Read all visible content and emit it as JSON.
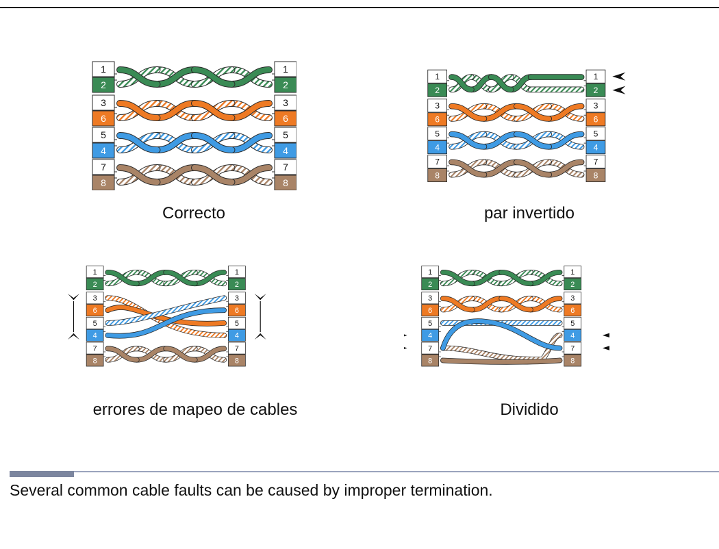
{
  "colors": {
    "green": "#3a8b55",
    "orange": "#ee7a24",
    "blue": "#3f9be4",
    "brown": "#a98467",
    "outline": "#2a2a2a",
    "footer_rule": "#9aa3bd"
  },
  "pin_labels": [
    "1",
    "2",
    "3",
    "6",
    "5",
    "4",
    "7",
    "8"
  ],
  "diagrams": [
    {
      "id": "correct",
      "caption": "Correcto"
    },
    {
      "id": "reversed",
      "caption": "par invertido"
    },
    {
      "id": "wiremap",
      "caption": "errores de mapeo de cables"
    },
    {
      "id": "split",
      "caption": "Dividido"
    }
  ],
  "footer": {
    "text": "Several common cable faults can be caused by improper termination."
  }
}
